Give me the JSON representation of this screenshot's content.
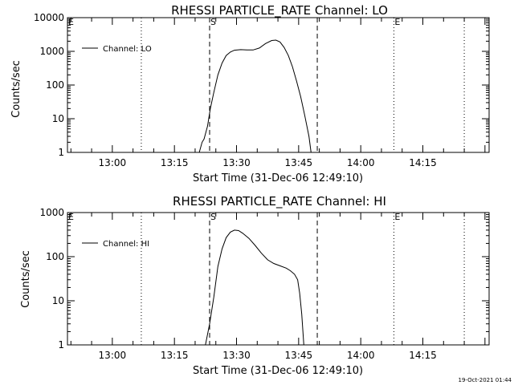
{
  "footer": {
    "timestamp": "19-Oct-2021 01:44"
  },
  "chart_data": [
    {
      "type": "line",
      "title": "RHESSI PARTICLE_RATE Channel: LO",
      "xlabel": "Start Time (31-Dec-06 12:49:10)",
      "ylabel": "Counts/sec",
      "yscale": "log",
      "xlim": [
        "12:49:10",
        "14:31:00"
      ],
      "ylim": [
        1,
        10000
      ],
      "x_ticks": [
        "13:00",
        "13:15",
        "13:30",
        "13:45",
        "14:00",
        "14:15"
      ],
      "y_ticks": [
        "1",
        "10",
        "100",
        "1000",
        "10000"
      ],
      "legend": {
        "entries": [
          "Channel: LO"
        ],
        "position": "top-left"
      },
      "markers": [
        {
          "label": "E",
          "time": "12:49:10",
          "style": "dotted"
        },
        {
          "label": "",
          "time": "13:07:00",
          "style": "dotted"
        },
        {
          "label": "S",
          "time": "13:23:30",
          "style": "dashed"
        },
        {
          "label": "",
          "time": "13:49:30",
          "style": "dashed"
        },
        {
          "label": "E",
          "time": "14:08:00",
          "style": "dotted"
        },
        {
          "label": "",
          "time": "14:25:00",
          "style": "dotted"
        }
      ],
      "series": [
        {
          "name": "Channel: LO",
          "points": [
            [
              "13:21:00",
              1
            ],
            [
              "13:21:40",
              2
            ],
            [
              "13:22:10",
              2.5
            ],
            [
              "13:23:00",
              6
            ],
            [
              "13:23:40",
              20
            ],
            [
              "13:24:30",
              60
            ],
            [
              "13:25:30",
              200
            ],
            [
              "13:26:30",
              450
            ],
            [
              "13:27:30",
              750
            ],
            [
              "13:28:30",
              950
            ],
            [
              "13:29:30",
              1080
            ],
            [
              "13:31:00",
              1120
            ],
            [
              "13:32:30",
              1100
            ],
            [
              "13:34:00",
              1100
            ],
            [
              "13:35:30",
              1250
            ],
            [
              "13:37:00",
              1700
            ],
            [
              "13:38:30",
              2100
            ],
            [
              "13:39:30",
              2150
            ],
            [
              "13:40:30",
              1900
            ],
            [
              "13:41:30",
              1300
            ],
            [
              "13:42:30",
              750
            ],
            [
              "13:43:30",
              350
            ],
            [
              "13:44:30",
              130
            ],
            [
              "13:45:30",
              45
            ],
            [
              "13:46:30",
              12
            ],
            [
              "13:47:30",
              3
            ],
            [
              "13:48:00",
              1
            ]
          ]
        }
      ]
    },
    {
      "type": "line",
      "title": "RHESSI PARTICLE_RATE Channel: HI",
      "xlabel": "Start Time (31-Dec-06 12:49:10)",
      "ylabel": "Counts/sec",
      "yscale": "log",
      "xlim": [
        "12:49:10",
        "14:31:00"
      ],
      "ylim": [
        1,
        1000
      ],
      "x_ticks": [
        "13:00",
        "13:15",
        "13:30",
        "13:45",
        "14:00",
        "14:15"
      ],
      "y_ticks": [
        "1",
        "10",
        "100",
        "1000"
      ],
      "legend": {
        "entries": [
          "Channel: HI"
        ],
        "position": "top-left"
      },
      "markers": [
        {
          "label": "E",
          "time": "12:49:10",
          "style": "dotted"
        },
        {
          "label": "",
          "time": "13:07:00",
          "style": "dotted"
        },
        {
          "label": "S",
          "time": "13:23:30",
          "style": "dashed"
        },
        {
          "label": "",
          "time": "13:49:30",
          "style": "dashed"
        },
        {
          "label": "E",
          "time": "14:08:00",
          "style": "dotted"
        },
        {
          "label": "",
          "time": "14:25:00",
          "style": "dotted"
        }
      ],
      "series": [
        {
          "name": "Channel: HI",
          "points": [
            [
              "13:22:30",
              1
            ],
            [
              "13:23:30",
              3
            ],
            [
              "13:24:30",
              12
            ],
            [
              "13:25:30",
              60
            ],
            [
              "13:26:30",
              150
            ],
            [
              "13:27:30",
              270
            ],
            [
              "13:28:30",
              360
            ],
            [
              "13:29:30",
              400
            ],
            [
              "13:30:30",
              390
            ],
            [
              "13:31:30",
              340
            ],
            [
              "13:33:00",
              260
            ],
            [
              "13:34:30",
              180
            ],
            [
              "13:36:00",
              120
            ],
            [
              "13:37:30",
              85
            ],
            [
              "13:39:00",
              70
            ],
            [
              "13:40:30",
              62
            ],
            [
              "13:42:00",
              55
            ],
            [
              "13:43:00",
              48
            ],
            [
              "13:44:00",
              40
            ],
            [
              "13:44:45",
              30
            ],
            [
              "13:45:15",
              15
            ],
            [
              "13:45:45",
              5
            ],
            [
              "13:46:15",
              1
            ]
          ]
        }
      ]
    }
  ]
}
